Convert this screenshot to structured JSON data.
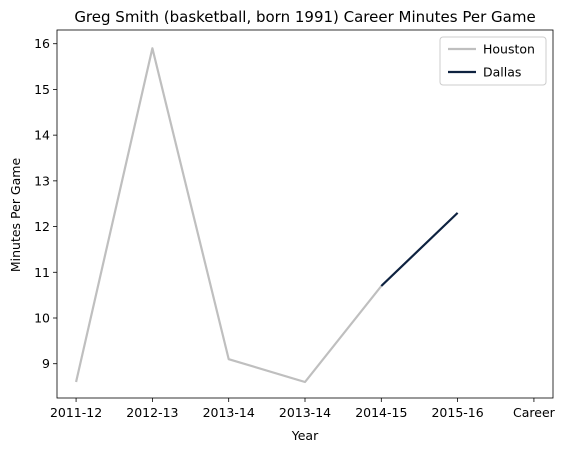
{
  "chart_data": {
    "type": "line",
    "title": "Greg Smith (basketball, born 1991) Career Minutes Per Game",
    "xlabel": "Year",
    "ylabel": "Minutes Per Game",
    "x_tick_labels": [
      "2011-12",
      "2012-13",
      "2013-14",
      "2013-14",
      "2014-15",
      "2015-16",
      "Career"
    ],
    "y_ticks": [
      9,
      10,
      11,
      12,
      13,
      14,
      15,
      16
    ],
    "xlim": [
      -0.25,
      6.25
    ],
    "ylim": [
      8.25,
      16.3
    ],
    "grid": false,
    "legend_position": "top-right",
    "series": [
      {
        "name": "Houston",
        "color": "#bfbfbf",
        "points": [
          {
            "x": 0,
            "y": 8.6
          },
          {
            "x": 1,
            "y": 15.9
          },
          {
            "x": 2,
            "y": 9.1
          },
          {
            "x": 3,
            "y": 8.6
          },
          {
            "x": 4,
            "y": 10.7
          }
        ]
      },
      {
        "name": "Dallas",
        "color": "#0e2240",
        "points": [
          {
            "x": 4,
            "y": 10.7
          },
          {
            "x": 5,
            "y": 12.3
          }
        ]
      }
    ]
  }
}
